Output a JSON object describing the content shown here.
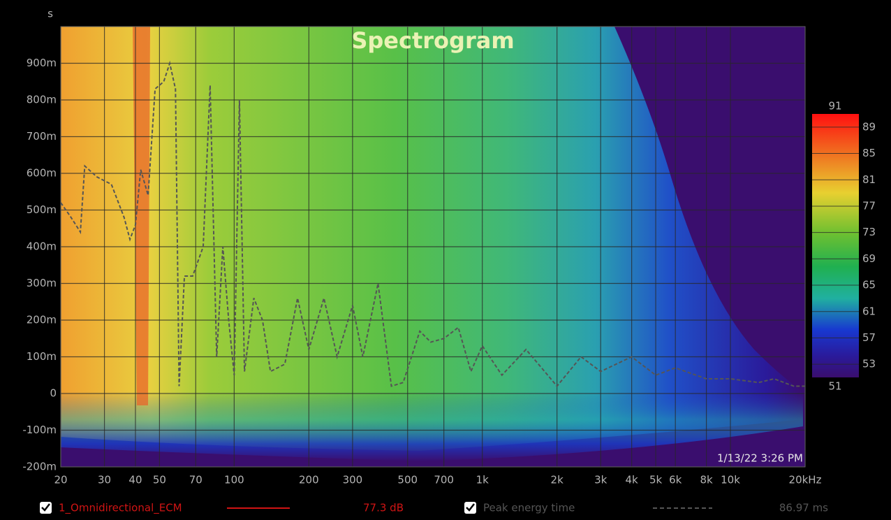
{
  "chart_data": {
    "type": "spectrogram",
    "title": "Spectrogram",
    "y_label": "s",
    "annotation": "1/13/22 3:26 PM",
    "log_x": true,
    "grid": true,
    "xlim": [
      20,
      20000
    ],
    "xticks": [
      20,
      30,
      40,
      50,
      70,
      100,
      200,
      300,
      500,
      700,
      {
        "value": 1000,
        "label": "1k"
      },
      {
        "value": 2000,
        "label": "2k"
      },
      {
        "value": 3000,
        "label": "3k"
      },
      {
        "value": 4000,
        "label": "4k"
      },
      {
        "value": 5000,
        "label": "5k"
      },
      {
        "value": 6000,
        "label": "6k"
      },
      {
        "value": 8000,
        "label": "8k"
      },
      {
        "value": 10000,
        "label": "10k"
      },
      {
        "value": 20000,
        "label": "20kHz"
      }
    ],
    "ylim": [
      -0.2,
      1.0
    ],
    "yticks": [
      {
        "value": -0.2,
        "label": "-200m"
      },
      {
        "value": -0.1,
        "label": "-100m"
      },
      0,
      {
        "value": 0.1,
        "label": "100m"
      },
      {
        "value": 0.2,
        "label": "200m"
      },
      {
        "value": 0.3,
        "label": "300m"
      },
      {
        "value": 0.4,
        "label": "400m"
      },
      {
        "value": 0.5,
        "label": "500m"
      },
      {
        "value": 0.6,
        "label": "600m"
      },
      {
        "value": 0.7,
        "label": "700m"
      },
      {
        "value": 0.8,
        "label": "800m"
      },
      {
        "value": 0.9,
        "label": "900m"
      }
    ],
    "clim": [
      51,
      91
    ],
    "cticks": [
      53,
      57,
      61,
      65,
      69,
      73,
      77,
      81,
      85,
      89
    ],
    "measurement": {
      "name": "1_Omnidirectional_ECM",
      "color": "#d01414",
      "level": "77.3 dB"
    },
    "series": [
      {
        "name": "Peak energy time",
        "color": "#555555",
        "readout": "86.97 ms",
        "x": [
          20,
          22,
          24,
          25,
          28,
          32,
          36,
          38,
          40,
          42,
          45,
          48,
          52,
          55,
          58,
          60,
          63,
          68,
          75,
          80,
          85,
          90,
          95,
          100,
          105,
          110,
          120,
          130,
          140,
          160,
          180,
          200,
          230,
          260,
          300,
          330,
          380,
          430,
          480,
          560,
          620,
          700,
          800,
          900,
          1000,
          1200,
          1500,
          2000,
          2500,
          3000,
          4000,
          5000,
          6000,
          8000,
          10000,
          13000,
          15000,
          18000,
          20000
        ],
        "values": [
          0.52,
          0.48,
          0.44,
          0.62,
          0.59,
          0.57,
          0.48,
          0.42,
          0.46,
          0.61,
          0.54,
          0.83,
          0.85,
          0.9,
          0.83,
          0.02,
          0.32,
          0.32,
          0.4,
          0.84,
          0.1,
          0.4,
          0.2,
          0.05,
          0.8,
          0.06,
          0.26,
          0.2,
          0.06,
          0.08,
          0.26,
          0.12,
          0.26,
          0.1,
          0.24,
          0.1,
          0.3,
          0.02,
          0.03,
          0.17,
          0.14,
          0.15,
          0.18,
          0.06,
          0.13,
          0.05,
          0.12,
          0.02,
          0.1,
          0.06,
          0.1,
          0.05,
          0.07,
          0.04,
          0.04,
          0.03,
          0.04,
          0.02,
          0.02
        ]
      }
    ]
  }
}
